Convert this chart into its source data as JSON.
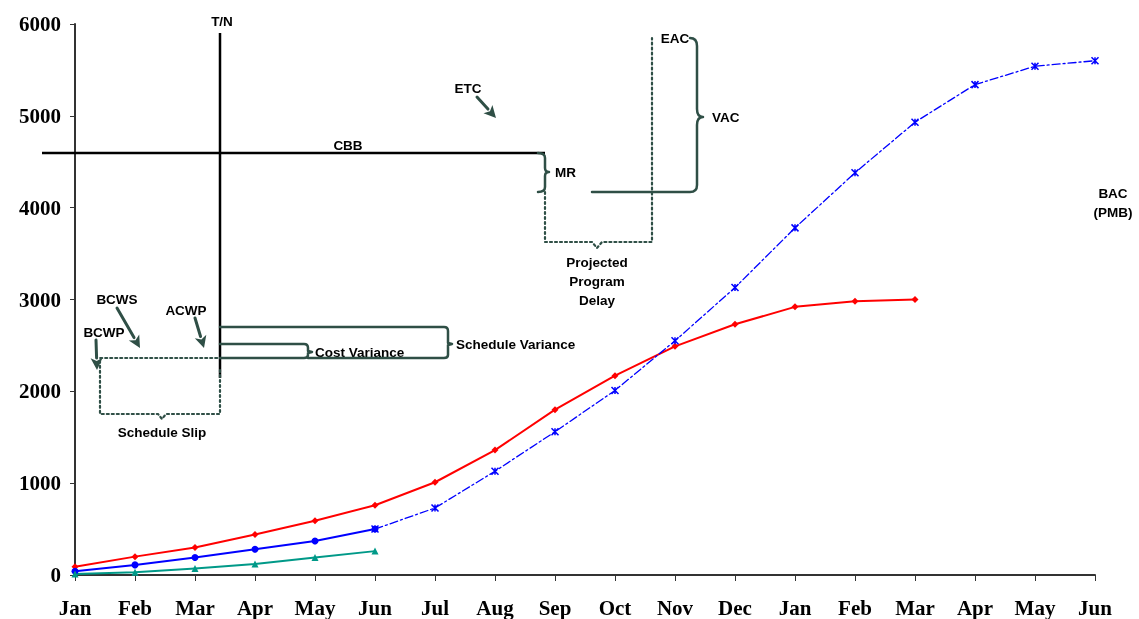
{
  "chart_data": {
    "type": "line",
    "categories": [
      "Jan",
      "Feb",
      "Mar",
      "Apr",
      "May",
      "Jun",
      "Jul",
      "Aug",
      "Sep",
      "Oct",
      "Nov",
      "Dec",
      "Jan",
      "Feb",
      "Mar",
      "Apr",
      "May",
      "Jun"
    ],
    "series": [
      {
        "color": "#ff0000",
        "marker": "diamond",
        "line_style": "solid",
        "values": [
          90,
          200,
          300,
          440,
          590,
          760,
          1010,
          1360,
          1800,
          2170,
          2490,
          2730,
          2920,
          2980,
          3000,
          null,
          null,
          null
        ]
      },
      {
        "color": "#0000ff",
        "marker": "circle",
        "line_style": "solid",
        "values": [
          40,
          110,
          190,
          280,
          370,
          500,
          null,
          null,
          null,
          null,
          null,
          null,
          null,
          null,
          null,
          null,
          null,
          null
        ]
      },
      {
        "color": "#009988",
        "marker": "triangle",
        "line_style": "solid",
        "values": [
          10,
          30,
          70,
          120,
          190,
          260,
          null,
          null,
          null,
          null,
          null,
          null,
          null,
          null,
          null,
          null,
          null,
          null
        ]
      },
      {
        "color": "#0000ff",
        "marker": "cross",
        "line_style": "dashed",
        "values": [
          null,
          null,
          null,
          null,
          null,
          500,
          730,
          1130,
          1560,
          2010,
          2550,
          3130,
          3780,
          4380,
          4930,
          5340,
          5540,
          5600
        ]
      }
    ],
    "ylim": [
      0,
      6000
    ],
    "yticks": [
      0,
      1000,
      2000,
      3000,
      4000,
      5000,
      6000
    ],
    "grid": false,
    "annotations": [
      "T/N",
      "CBB",
      "ETC",
      "MR",
      "EAC",
      "VAC",
      "BAC (PMB)",
      "Projected Program Delay",
      "BCWS",
      "ACWP",
      "BCWP",
      "Cost Variance",
      "Schedule Variance",
      "Schedule Slip"
    ]
  }
}
